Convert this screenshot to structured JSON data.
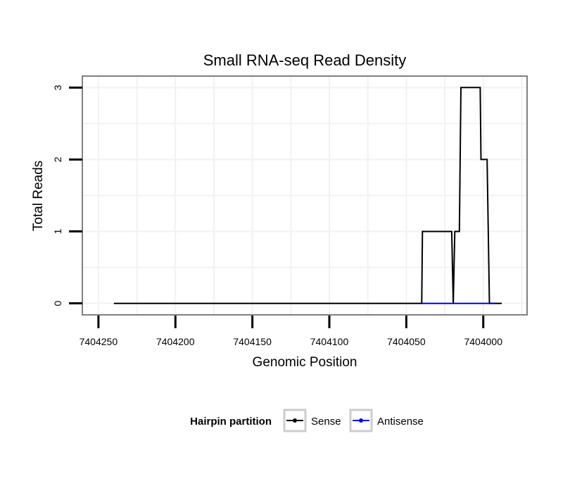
{
  "chart_data": {
    "type": "line",
    "title": "Small RNA-seq Read Density",
    "xlabel": "Genomic Position",
    "ylabel": "Total Reads",
    "x_reversed": true,
    "xlim": [
      7404260,
      7403972
    ],
    "ylim": [
      -0.15,
      3.15
    ],
    "x_ticks": [
      7404250,
      7404200,
      7404150,
      7404100,
      7404050,
      7404000
    ],
    "y_ticks": [
      0,
      1,
      2,
      3
    ],
    "grid": true,
    "legend": {
      "title": "Hairpin partition",
      "placement": "bottom",
      "entries": [
        "Sense",
        "Antisense"
      ]
    },
    "series": [
      {
        "name": "Sense",
        "color": "#000000",
        "x": [
          7404240,
          7404040,
          7404039.5,
          7404020.5,
          7404019.5,
          7404018.5,
          7404015.5,
          7404014.5,
          7404002,
          7404001.5,
          7403997.5,
          7403996,
          7403993,
          7403992.5,
          7403988
        ],
        "y": [
          0,
          0,
          1,
          1,
          0,
          1,
          1,
          3,
          3,
          2,
          2,
          0,
          0,
          0,
          0
        ]
      },
      {
        "name": "Antisense",
        "color": "#0000ff",
        "x": [
          7404040,
          7403992.5
        ],
        "y": [
          0,
          0
        ]
      }
    ]
  }
}
